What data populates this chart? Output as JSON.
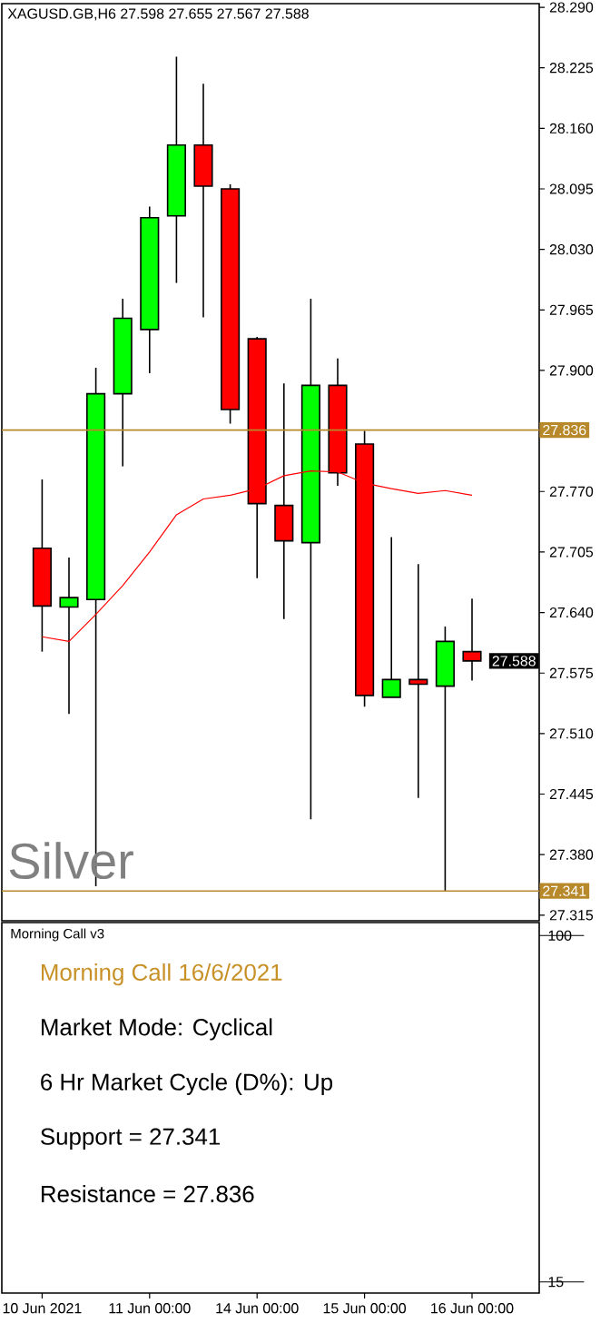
{
  "chart_data": [
    {
      "type": "candlestick",
      "title": "XAGUSD.GB,H6  27.598 27.655 27.567 27.588",
      "categories": [
        null,
        null,
        null,
        null,
        null,
        null,
        null,
        null,
        null,
        null,
        null,
        null,
        null,
        null,
        null,
        null,
        null
      ],
      "tick_labels": "y",
      "series": [
        {
          "type": "candlestick",
          "colors": [
            "#ff0000",
            "#00ff00",
            "#00ff00",
            "#00ff00",
            "#00ff00",
            "#00ff00",
            "#ff0000",
            "#ff0000",
            "#ff0000",
            "#ff0000",
            "#00ff00",
            "#ff0000",
            "#ff0000",
            "#00ff00",
            "#ff0000",
            "#00ff00",
            "#ff0000"
          ],
          "ohlc": [
            [
              27.709,
              27.783,
              27.598,
              27.647
            ],
            [
              27.646,
              27.699,
              27.531,
              27.656
            ],
            [
              27.654,
              27.903,
              27.346,
              27.875
            ],
            [
              27.875,
              27.977,
              27.797,
              27.956
            ],
            [
              27.944,
              28.076,
              27.897,
              28.064
            ],
            [
              28.066,
              28.237,
              27.994,
              28.142
            ],
            [
              28.142,
              28.208,
              27.957,
              28.098
            ],
            [
              28.095,
              28.1,
              27.843,
              27.858
            ],
            [
              27.934,
              27.936,
              27.677,
              27.757
            ],
            [
              27.755,
              27.886,
              27.633,
              27.717
            ],
            [
              27.715,
              27.977,
              27.418,
              27.884
            ],
            [
              27.884,
              27.913,
              27.776,
              27.79
            ],
            [
              27.821,
              27.835,
              27.539,
              27.551
            ],
            [
              27.549,
              27.721,
              27.549,
              27.568
            ],
            [
              27.568,
              27.692,
              27.441,
              27.563
            ],
            [
              27.561,
              27.625,
              27.341,
              27.609
            ],
            [
              27.598,
              27.655,
              27.567,
              27.588
            ]
          ]
        },
        {
          "type": "line",
          "color": "#ff0000",
          "values": [
            27.614,
            27.609,
            27.638,
            27.669,
            27.705,
            27.745,
            27.762,
            27.766,
            27.773,
            27.787,
            27.792,
            27.791,
            27.779,
            27.773,
            27.768,
            27.771,
            27.766
          ]
        }
      ],
      "ylim": [
        27.309,
        28.294
      ],
      "yticks": [
        {
          "value": 28.29,
          "label": "28.290"
        },
        28.225,
        {
          "value": 28.16,
          "label": "28.160"
        },
        28.095,
        {
          "value": 28.03,
          "label": "28.030"
        },
        27.965,
        {
          "value": 27.9,
          "label": "27.900"
        },
        {
          "value": 27.77,
          "label": "27.770"
        },
        27.705,
        {
          "value": 27.64,
          "label": "27.640"
        },
        27.575,
        {
          "value": 27.51,
          "label": "27.510"
        },
        27.445,
        {
          "value": 27.38,
          "label": "27.380"
        },
        27.315
      ],
      "ref_lines": [
        {
          "axis": "y",
          "value": 27.836,
          "label": "27.836",
          "color": "#b8892b"
        },
        {
          "axis": "y",
          "value": 27.341,
          "label": "27.341",
          "color": "#b8892b"
        }
      ],
      "annotations": [
        "Silver",
        {
          "text": "27.588",
          "y": 27.588
        }
      ]
    },
    {
      "type": "other",
      "title": "Morning Call v3",
      "categories": [
        "10 Jun 2021",
        null,
        null,
        null,
        "11 Jun 00:00",
        null,
        null,
        null,
        "14 Jun 00:00",
        null,
        null,
        null,
        "15 Jun 00:00",
        null,
        null,
        null,
        "16 Jun 00:00"
      ],
      "annotations": [
        "Morning Call 16/6/2021",
        "Market Mode: Cyclical",
        "6 Hr Market Cycle (D%): Up",
        "Support = 27.341",
        "Resistance = 27.836",
        "100",
        "15"
      ]
    }
  ]
}
